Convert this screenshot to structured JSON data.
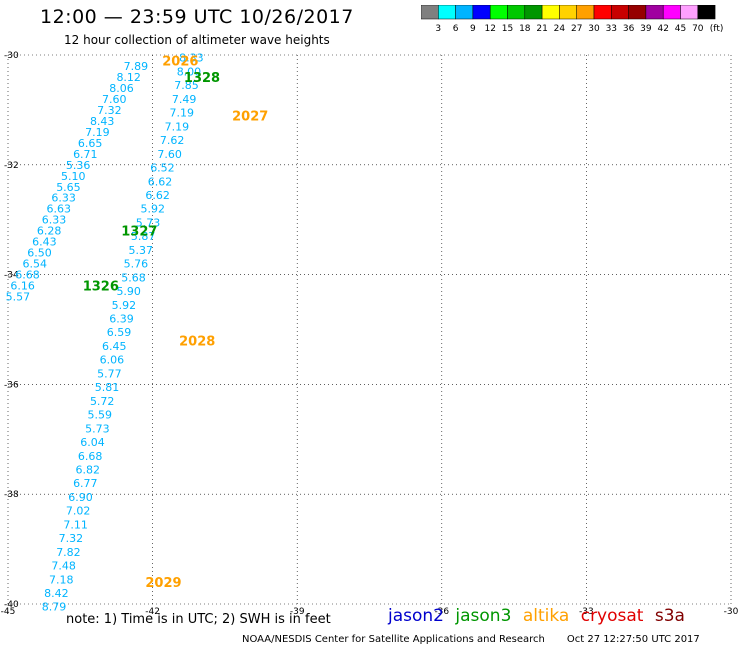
{
  "header": {
    "title": "12:00 — 23:59 UTC 10/26/2017",
    "subtitle": "12 hour collection of altimeter wave heights"
  },
  "colorbar": {
    "labels": [
      "3",
      "6",
      "9",
      "12",
      "15",
      "18",
      "21",
      "24",
      "27",
      "30",
      "33",
      "36",
      "39",
      "42",
      "45",
      "70"
    ],
    "unit": "(ft)",
    "colors": [
      "#808080",
      "#00ffff",
      "#00b4ff",
      "#0000ff",
      "#00ff00",
      "#00c800",
      "#009600",
      "#ffff00",
      "#ffd200",
      "#ffa000",
      "#ff0000",
      "#c80000",
      "#960000",
      "#a000a0",
      "#ff00ff",
      "#ffa0ff",
      "#000000"
    ]
  },
  "footer": {
    "note": "note: 1) Time is in UTC; 2) SWH is in feet",
    "credit": "NOAA/NESDIS Center for Satellite Applications and Research",
    "timestamp": "Oct 27 12:27:50 UTC 2017"
  },
  "legend": [
    {
      "name": "jason2",
      "color": "#0000cc"
    },
    {
      "name": "jason3",
      "color": "#009600"
    },
    {
      "name": "altika",
      "color": "#ffa000"
    },
    {
      "name": "cryosat",
      "color": "#e00000"
    },
    {
      "name": "s3a",
      "color": "#800000"
    }
  ],
  "chart_data": {
    "type": "scatter",
    "xlim": [
      -45,
      -30
    ],
    "ylim": [
      -40,
      -30
    ],
    "x_ticks": [
      "-45",
      "-42",
      "-39",
      "-36",
      "-33",
      "-30"
    ],
    "y_ticks": [
      "-30",
      "-32",
      "-34",
      "-36",
      "-38",
      "-40"
    ],
    "grid": true,
    "label_color": "#00b4ff",
    "pass_labels": [
      {
        "text": "2026",
        "x": -41.8,
        "y": -30.1,
        "color": "#ffa000"
      },
      {
        "text": "1328",
        "x": -41.35,
        "y": -30.4,
        "color": "#009600"
      },
      {
        "text": "2027",
        "x": -40.35,
        "y": -31.1,
        "color": "#ffa000"
      },
      {
        "text": "1327",
        "x": -42.65,
        "y": -33.2,
        "color": "#009600"
      },
      {
        "text": "1326",
        "x": -43.45,
        "y": -34.2,
        "color": "#009600"
      },
      {
        "text": "2028",
        "x": -41.45,
        "y": -35.2,
        "color": "#ffa000"
      },
      {
        "text": "2029",
        "x": -42.15,
        "y": -39.6,
        "color": "#ffa000"
      }
    ],
    "series": [
      {
        "name": "jason3",
        "points": [
          {
            "x": -42.6,
            "y": -30.2,
            "v": "7.89"
          },
          {
            "x": -42.75,
            "y": -30.4,
            "v": "8.12"
          },
          {
            "x": -42.9,
            "y": -30.6,
            "v": "8.06"
          },
          {
            "x": -43.05,
            "y": -30.8,
            "v": "7.60"
          },
          {
            "x": -43.15,
            "y": -31.0,
            "v": "7.32"
          },
          {
            "x": -43.3,
            "y": -31.2,
            "v": "8.43"
          },
          {
            "x": -43.4,
            "y": -31.4,
            "v": "7.19"
          },
          {
            "x": -43.55,
            "y": -31.6,
            "v": "6.65"
          },
          {
            "x": -43.65,
            "y": -31.8,
            "v": "6.71"
          },
          {
            "x": -43.8,
            "y": -32.0,
            "v": "5.36"
          },
          {
            "x": -43.9,
            "y": -32.2,
            "v": "5.10"
          },
          {
            "x": -44.0,
            "y": -32.4,
            "v": "5.65"
          },
          {
            "x": -44.1,
            "y": -32.6,
            "v": "6.33"
          },
          {
            "x": -44.2,
            "y": -32.8,
            "v": "6.63"
          },
          {
            "x": -44.3,
            "y": -33.0,
            "v": "6.33"
          },
          {
            "x": -44.4,
            "y": -33.2,
            "v": "6.28"
          },
          {
            "x": -44.5,
            "y": -33.4,
            "v": "6.43"
          },
          {
            "x": -44.6,
            "y": -33.6,
            "v": "6.50"
          },
          {
            "x": -44.7,
            "y": -33.8,
            "v": "6.54"
          },
          {
            "x": -44.85,
            "y": -34.0,
            "v": "6.68"
          },
          {
            "x": -44.95,
            "y": -34.2,
            "v": "6.16"
          },
          {
            "x": -45.05,
            "y": -34.4,
            "v": "5.57"
          }
        ]
      },
      {
        "name": "altika",
        "points": [
          {
            "x": -41.45,
            "y": -30.05,
            "v": "8.33"
          },
          {
            "x": -41.5,
            "y": -30.3,
            "v": "8.00"
          },
          {
            "x": -41.55,
            "y": -30.55,
            "v": "7.85"
          },
          {
            "x": -41.6,
            "y": -30.8,
            "v": "7.49"
          },
          {
            "x": -41.65,
            "y": -31.05,
            "v": "7.19"
          },
          {
            "x": -41.75,
            "y": -31.3,
            "v": "7.19"
          },
          {
            "x": -41.85,
            "y": -31.55,
            "v": "7.62"
          },
          {
            "x": -41.9,
            "y": -31.8,
            "v": "7.60"
          },
          {
            "x": -42.05,
            "y": -32.05,
            "v": "6.52"
          },
          {
            "x": -42.1,
            "y": -32.3,
            "v": "6.62"
          },
          {
            "x": -42.15,
            "y": -32.55,
            "v": "6.62"
          },
          {
            "x": -42.25,
            "y": -32.8,
            "v": "5.92"
          },
          {
            "x": -42.35,
            "y": -33.05,
            "v": "5.73"
          },
          {
            "x": -42.45,
            "y": -33.3,
            "v": "5.87"
          },
          {
            "x": -42.5,
            "y": -33.55,
            "v": "5.37"
          },
          {
            "x": -42.6,
            "y": -33.8,
            "v": "5.76"
          },
          {
            "x": -42.65,
            "y": -34.05,
            "v": "5.68"
          },
          {
            "x": -42.75,
            "y": -34.3,
            "v": "5.90"
          },
          {
            "x": -42.85,
            "y": -34.55,
            "v": "5.92"
          },
          {
            "x": -42.9,
            "y": -34.8,
            "v": "6.39"
          },
          {
            "x": -42.95,
            "y": -35.05,
            "v": "6.59"
          },
          {
            "x": -43.05,
            "y": -35.3,
            "v": "6.45"
          },
          {
            "x": -43.1,
            "y": -35.55,
            "v": "6.06"
          },
          {
            "x": -43.15,
            "y": -35.8,
            "v": "5.77"
          },
          {
            "x": -43.2,
            "y": -36.05,
            "v": "5.81"
          },
          {
            "x": -43.3,
            "y": -36.3,
            "v": "5.72"
          },
          {
            "x": -43.35,
            "y": -36.55,
            "v": "5.59"
          },
          {
            "x": -43.4,
            "y": -36.8,
            "v": "5.73"
          },
          {
            "x": -43.5,
            "y": -37.05,
            "v": "6.04"
          },
          {
            "x": -43.55,
            "y": -37.3,
            "v": "6.68"
          },
          {
            "x": -43.6,
            "y": -37.55,
            "v": "6.82"
          },
          {
            "x": -43.65,
            "y": -37.8,
            "v": "6.77"
          },
          {
            "x": -43.75,
            "y": -38.05,
            "v": "6.90"
          },
          {
            "x": -43.8,
            "y": -38.3,
            "v": "7.02"
          },
          {
            "x": -43.85,
            "y": -38.55,
            "v": "7.11"
          },
          {
            "x": -43.95,
            "y": -38.8,
            "v": "7.32"
          },
          {
            "x": -44.0,
            "y": -39.05,
            "v": "7.82"
          },
          {
            "x": -44.1,
            "y": -39.3,
            "v": "7.48"
          },
          {
            "x": -44.15,
            "y": -39.55,
            "v": "7.18"
          },
          {
            "x": -44.25,
            "y": -39.8,
            "v": "8.42"
          },
          {
            "x": -44.3,
            "y": -40.05,
            "v": "8.79"
          }
        ]
      }
    ]
  }
}
